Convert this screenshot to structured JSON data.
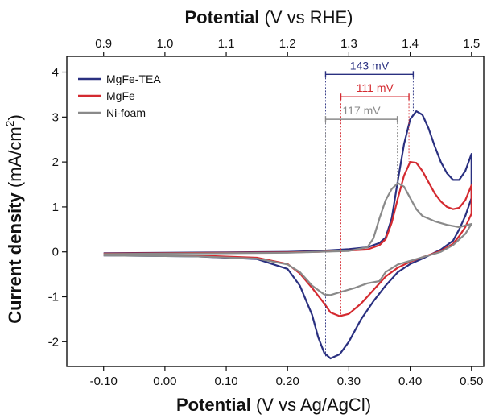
{
  "chart_data": {
    "type": "line",
    "xlabel_bold": "Potential",
    "xlabel_rest": " (V vs Ag/AgCl)",
    "x2label_bold": "Potential",
    "x2label_rest": " (V vs RHE)",
    "ylabel_bold": "Current density",
    "ylabel_rest": " (mA/cm",
    "ylabel_sup": "2",
    "ylabel_end": ")",
    "xlim": [
      -0.16,
      0.52
    ],
    "ylim": [
      -2.55,
      4.35
    ],
    "x_ticks": [
      -0.1,
      0.0,
      0.1,
      0.2,
      0.3,
      0.4,
      0.5
    ],
    "x_tick_labels": [
      "-0.10",
      "0.00",
      "0.10",
      "0.20",
      "0.30",
      "0.40",
      "0.50"
    ],
    "x2_offset": 1.0,
    "x2_ticks": [
      0.9,
      1.0,
      1.1,
      1.2,
      1.3,
      1.4,
      1.5
    ],
    "x2_tick_labels": [
      "0.9",
      "1.0",
      "1.1",
      "1.2",
      "1.3",
      "1.4",
      "1.5"
    ],
    "y_ticks": [
      -2,
      -1,
      0,
      1,
      2,
      3,
      4
    ],
    "y_tick_labels": [
      "-2",
      "-1",
      "0",
      "1",
      "2",
      "3",
      "4"
    ],
    "legend_position": "top-left",
    "series": [
      {
        "name": "MgFe-TEA",
        "color": "#2a3080",
        "points": [
          [
            -0.1,
            -0.03
          ],
          [
            0.0,
            -0.02
          ],
          [
            0.1,
            -0.01
          ],
          [
            0.2,
            0.0
          ],
          [
            0.25,
            0.02
          ],
          [
            0.3,
            0.06
          ],
          [
            0.33,
            0.1
          ],
          [
            0.35,
            0.2
          ],
          [
            0.36,
            0.32
          ],
          [
            0.37,
            0.75
          ],
          [
            0.38,
            1.6
          ],
          [
            0.39,
            2.4
          ],
          [
            0.4,
            2.95
          ],
          [
            0.41,
            3.13
          ],
          [
            0.42,
            3.05
          ],
          [
            0.43,
            2.75
          ],
          [
            0.44,
            2.35
          ],
          [
            0.45,
            2.0
          ],
          [
            0.46,
            1.75
          ],
          [
            0.47,
            1.6
          ],
          [
            0.48,
            1.6
          ],
          [
            0.49,
            1.8
          ],
          [
            0.5,
            2.18
          ],
          [
            0.5,
            1.2
          ],
          [
            0.49,
            0.8
          ],
          [
            0.48,
            0.5
          ],
          [
            0.47,
            0.25
          ],
          [
            0.45,
            0.05
          ],
          [
            0.42,
            -0.15
          ],
          [
            0.4,
            -0.27
          ],
          [
            0.38,
            -0.45
          ],
          [
            0.36,
            -0.75
          ],
          [
            0.34,
            -1.1
          ],
          [
            0.32,
            -1.5
          ],
          [
            0.3,
            -2.0
          ],
          [
            0.285,
            -2.28
          ],
          [
            0.27,
            -2.37
          ],
          [
            0.26,
            -2.25
          ],
          [
            0.25,
            -1.9
          ],
          [
            0.24,
            -1.4
          ],
          [
            0.22,
            -0.75
          ],
          [
            0.2,
            -0.38
          ],
          [
            0.15,
            -0.16
          ],
          [
            0.05,
            -0.1
          ],
          [
            -0.1,
            -0.08
          ]
        ]
      },
      {
        "name": "MgFe",
        "color": "#d42a30",
        "points": [
          [
            -0.1,
            -0.04
          ],
          [
            0.0,
            -0.03
          ],
          [
            0.1,
            -0.02
          ],
          [
            0.2,
            -0.01
          ],
          [
            0.25,
            0.0
          ],
          [
            0.3,
            0.03
          ],
          [
            0.33,
            0.05
          ],
          [
            0.35,
            0.15
          ],
          [
            0.36,
            0.28
          ],
          [
            0.37,
            0.65
          ],
          [
            0.38,
            1.2
          ],
          [
            0.39,
            1.7
          ],
          [
            0.4,
            2.0
          ],
          [
            0.41,
            1.98
          ],
          [
            0.42,
            1.8
          ],
          [
            0.43,
            1.55
          ],
          [
            0.44,
            1.3
          ],
          [
            0.45,
            1.12
          ],
          [
            0.46,
            1.0
          ],
          [
            0.47,
            0.95
          ],
          [
            0.48,
            0.98
          ],
          [
            0.49,
            1.15
          ],
          [
            0.5,
            1.48
          ],
          [
            0.5,
            0.85
          ],
          [
            0.49,
            0.55
          ],
          [
            0.48,
            0.35
          ],
          [
            0.47,
            0.18
          ],
          [
            0.45,
            0.02
          ],
          [
            0.42,
            -0.12
          ],
          [
            0.4,
            -0.22
          ],
          [
            0.38,
            -0.35
          ],
          [
            0.36,
            -0.55
          ],
          [
            0.34,
            -0.85
          ],
          [
            0.32,
            -1.15
          ],
          [
            0.3,
            -1.38
          ],
          [
            0.285,
            -1.43
          ],
          [
            0.27,
            -1.35
          ],
          [
            0.26,
            -1.15
          ],
          [
            0.24,
            -0.8
          ],
          [
            0.22,
            -0.48
          ],
          [
            0.2,
            -0.27
          ],
          [
            0.15,
            -0.13
          ],
          [
            0.05,
            -0.08
          ],
          [
            -0.1,
            -0.06
          ]
        ]
      },
      {
        "name": "Ni-foam",
        "color": "#8a8a8a",
        "points": [
          [
            -0.1,
            -0.05
          ],
          [
            0.0,
            -0.04
          ],
          [
            0.1,
            -0.03
          ],
          [
            0.2,
            -0.02
          ],
          [
            0.25,
            0.0
          ],
          [
            0.3,
            0.02
          ],
          [
            0.33,
            0.1
          ],
          [
            0.34,
            0.3
          ],
          [
            0.35,
            0.75
          ],
          [
            0.36,
            1.15
          ],
          [
            0.37,
            1.4
          ],
          [
            0.38,
            1.53
          ],
          [
            0.39,
            1.45
          ],
          [
            0.4,
            1.2
          ],
          [
            0.41,
            0.95
          ],
          [
            0.42,
            0.8
          ],
          [
            0.44,
            0.68
          ],
          [
            0.46,
            0.6
          ],
          [
            0.48,
            0.55
          ],
          [
            0.5,
            0.62
          ],
          [
            0.49,
            0.4
          ],
          [
            0.47,
            0.15
          ],
          [
            0.45,
            0.0
          ],
          [
            0.42,
            -0.12
          ],
          [
            0.4,
            -0.2
          ],
          [
            0.38,
            -0.28
          ],
          [
            0.36,
            -0.45
          ],
          [
            0.35,
            -0.65
          ],
          [
            0.33,
            -0.7
          ],
          [
            0.31,
            -0.8
          ],
          [
            0.29,
            -0.88
          ],
          [
            0.27,
            -0.96
          ],
          [
            0.26,
            -0.95
          ],
          [
            0.24,
            -0.75
          ],
          [
            0.22,
            -0.45
          ],
          [
            0.2,
            -0.28
          ],
          [
            0.15,
            -0.15
          ],
          [
            0.05,
            -0.1
          ],
          [
            -0.1,
            -0.08
          ]
        ]
      }
    ],
    "annotations": [
      {
        "label": "143 mV",
        "color": "#2a3080",
        "x1": 0.262,
        "x2": 0.405,
        "y": 3.95,
        "y_end1": -2.37,
        "y_end2": 3.13
      },
      {
        "label": "111 mV",
        "color": "#d42a30",
        "x1": 0.287,
        "x2": 0.398,
        "y": 3.45,
        "y_end1": -1.43,
        "y_end2": 2.0
      },
      {
        "label": "117 mV",
        "color": "#8a8a8a",
        "x1": 0.262,
        "x2": 0.379,
        "y": 2.95,
        "y_end1": -0.96,
        "y_end2": 1.53
      }
    ]
  }
}
